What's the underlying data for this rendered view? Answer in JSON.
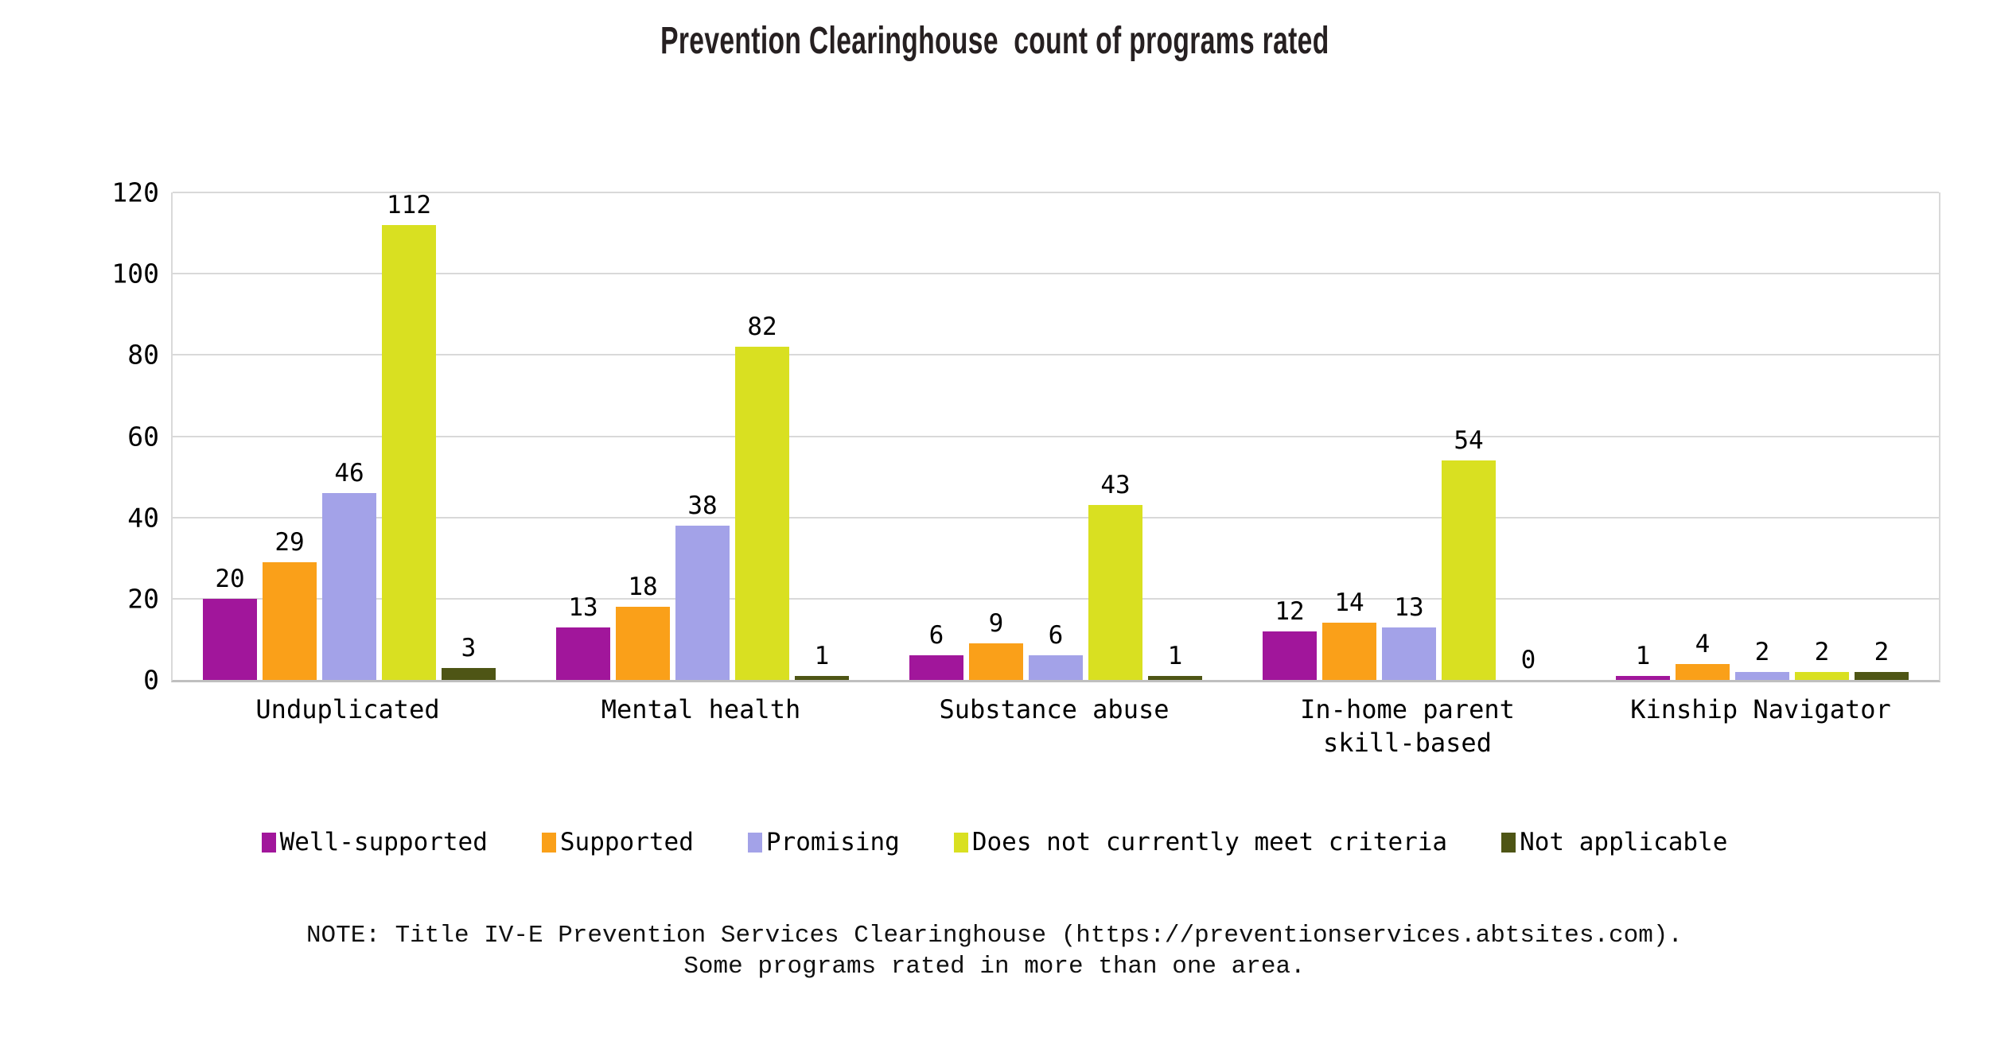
{
  "chart_data": {
    "type": "bar",
    "title": "Prevention Clearinghouse  count of programs rated",
    "categories": [
      "Unduplicated",
      "Mental health",
      "Substance abuse",
      "In-home parent skill-based",
      "Kinship Navigator"
    ],
    "series": [
      {
        "name": "Well-supported",
        "color": "#A1169B",
        "values": [
          20,
          13,
          6,
          12,
          1
        ]
      },
      {
        "name": "Supported",
        "color": "#FAA019",
        "values": [
          29,
          18,
          9,
          14,
          4
        ]
      },
      {
        "name": "Promising",
        "color": "#A3A2E8",
        "values": [
          46,
          38,
          6,
          13,
          2
        ]
      },
      {
        "name": "Does not currently meet criteria",
        "color": "#D9E021",
        "values": [
          112,
          82,
          43,
          54,
          2
        ]
      },
      {
        "name": "Not applicable",
        "color": "#4E5515",
        "values": [
          3,
          1,
          1,
          0,
          2
        ]
      }
    ],
    "xlabel": "",
    "ylabel": "",
    "ylim": [
      0,
      120
    ],
    "yticks": [
      0,
      20,
      40,
      60,
      80,
      100,
      120
    ],
    "grid": "horizontal",
    "grid_color": "#D9D9D9",
    "axis_color": "#BFBFBF",
    "legend_position": "bottom"
  },
  "note": {
    "line1": "NOTE: Title IV-E Prevention Services Clearinghouse (https://preventionservices.abtsites.com).",
    "line2": "Some programs rated in more than one area."
  }
}
